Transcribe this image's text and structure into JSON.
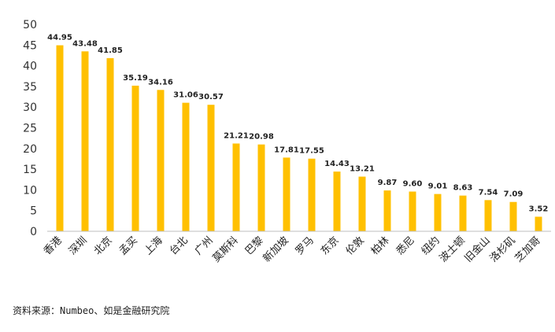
{
  "chart_data": {
    "type": "bar",
    "categories": [
      "香港",
      "深圳",
      "北京",
      "孟买",
      "上海",
      "台北",
      "广州",
      "莫斯科",
      "巴黎",
      "新加坡",
      "罗马",
      "东京",
      "伦敦",
      "柏林",
      "悉尼",
      "纽约",
      "波士顿",
      "旧金山",
      "洛杉矶",
      "芝加哥"
    ],
    "values": [
      44.95,
      43.48,
      41.85,
      35.19,
      34.16,
      31.06,
      30.57,
      21.21,
      20.98,
      17.81,
      17.55,
      14.43,
      13.21,
      9.87,
      9.6,
      9.01,
      8.63,
      7.54,
      7.09,
      3.52
    ],
    "value_labels": [
      "44.95",
      "43.48",
      "41.85",
      "35.19",
      "34.16",
      "31.06",
      "30.57",
      "21.21",
      "20.98",
      "17.81",
      "17.55",
      "14.43",
      "13.21",
      "9.87",
      "9.60",
      "9.01",
      "8.63",
      "7.54",
      "7.09",
      "3.52"
    ],
    "yticks": [
      0,
      5,
      10,
      15,
      20,
      25,
      30,
      35,
      40,
      45,
      50
    ],
    "ylim": [
      0,
      50
    ],
    "bar_color": "#FFC000",
    "grid": false,
    "legend": false,
    "title": "",
    "xlabel": "",
    "ylabel": ""
  },
  "source_note": "资料来源：Numbeo、如是金融研究院"
}
